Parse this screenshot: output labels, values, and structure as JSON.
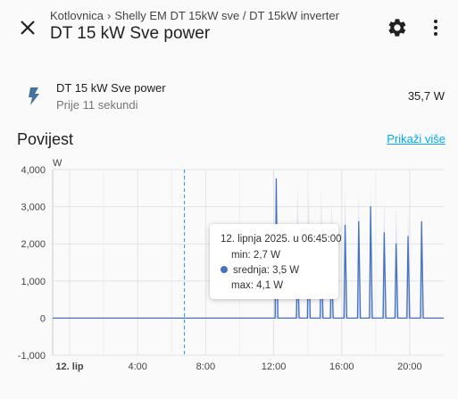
{
  "header": {
    "breadcrumb": [
      "Kotlovnica",
      "Shelly EM DT 15kW sve / DT 15kW inverter"
    ],
    "breadcrumb_separator": "›",
    "title": "DT 15 kW Sve power",
    "icons": [
      "close-icon",
      "gear-icon",
      "more-vert-icon"
    ]
  },
  "entity": {
    "icon": "flash-icon",
    "name": "DT 15 kW Sve power",
    "last_changed": "Prije 11 sekundi",
    "state": "35,7 W"
  },
  "history": {
    "title": "Povijest",
    "show_more": "Prikaži više"
  },
  "chart_data": {
    "type": "line",
    "unit": "W",
    "ylim": [
      -1000,
      4000
    ],
    "y_ticks": [
      4000,
      3000,
      2000,
      1000,
      0,
      -1000
    ],
    "y_tick_labels": [
      "4,000",
      "3,000",
      "2,000",
      "1,000",
      "0",
      "-1,000"
    ],
    "xlim_hours": [
      -1,
      22
    ],
    "x_ticks": [
      {
        "h": 0,
        "label": "12. lip"
      },
      {
        "h": 4,
        "label": "4:00"
      },
      {
        "h": 8,
        "label": "8:00"
      },
      {
        "h": 12,
        "label": "12:00"
      },
      {
        "h": 16,
        "label": "16:00"
      },
      {
        "h": 20,
        "label": "20:00"
      }
    ],
    "grid": true,
    "cursor_h": 6.75,
    "color": "#4472c4",
    "peaks": [
      {
        "h": 12.15,
        "mean": 3750,
        "max": 3900
      },
      {
        "h": 13.4,
        "mean": 1500,
        "max": 3600
      },
      {
        "h": 14.05,
        "mean": 2500,
        "max": 3500
      },
      {
        "h": 14.8,
        "mean": 2400,
        "max": 3500
      },
      {
        "h": 15.4,
        "mean": 1700,
        "max": 3200
      },
      {
        "h": 16.2,
        "mean": 2500,
        "max": 3500
      },
      {
        "h": 17.0,
        "mean": 2600,
        "max": 3400
      },
      {
        "h": 17.7,
        "mean": 3000,
        "max": 3600
      },
      {
        "h": 18.5,
        "mean": 2300,
        "max": 3200
      },
      {
        "h": 19.2,
        "mean": 2000,
        "max": 3100
      },
      {
        "h": 19.9,
        "mean": 2200,
        "max": 2800
      },
      {
        "h": 20.7,
        "mean": 2600,
        "max": 2800
      }
    ]
  },
  "tooltip": {
    "date": "12. lipnja 2025. u 06:45:00",
    "min": "min: 2,7 W",
    "mean": "srednja: 3,5 W",
    "max": "max: 4,1 W"
  }
}
